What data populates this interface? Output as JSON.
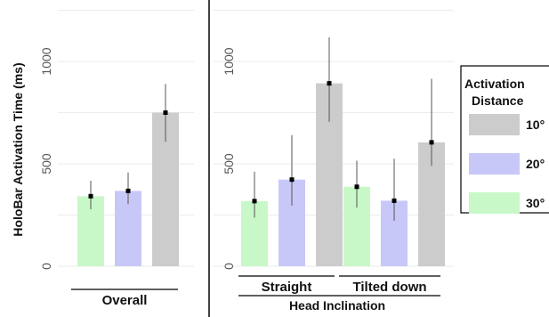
{
  "chart_data": {
    "type": "bar",
    "ylabel": "HoloBar Activation Time (ms)",
    "yticks": [
      0,
      500,
      1000
    ],
    "ylim": [
      0,
      1250
    ],
    "grid": true,
    "legend": {
      "title_lines": [
        "Activation",
        "Distance"
      ],
      "entries": [
        {
          "label": "10°",
          "color": "#cccccc"
        },
        {
          "label": "20°",
          "color": "#c8c8f8"
        },
        {
          "label": "30°",
          "color": "#c8f8c8"
        }
      ],
      "placement": "right"
    },
    "panels": [
      {
        "groups": [
          {
            "label": "Overall",
            "bars": [
              {
                "distance": "30°",
                "value": 342,
                "err_low": 278,
                "err_high": 418
              },
              {
                "distance": "20°",
                "value": 368,
                "err_low": 303,
                "err_high": 458
              },
              {
                "distance": "10°",
                "value": 750,
                "err_low": 608,
                "err_high": 890
              }
            ]
          }
        ]
      },
      {
        "xlabel": "Head Inclination",
        "groups": [
          {
            "label": "Straight",
            "bars": [
              {
                "distance": "30°",
                "value": 318,
                "err_low": 237,
                "err_high": 462
              },
              {
                "distance": "20°",
                "value": 423,
                "err_low": 296,
                "err_high": 640
              },
              {
                "distance": "10°",
                "value": 893,
                "err_low": 705,
                "err_high": 1118
              }
            ]
          },
          {
            "label": "Tilted down",
            "bars": [
              {
                "distance": "30°",
                "value": 388,
                "err_low": 286,
                "err_high": 515
              },
              {
                "distance": "20°",
                "value": 320,
                "err_low": 222,
                "err_high": 525
              },
              {
                "distance": "10°",
                "value": 605,
                "err_low": 490,
                "err_high": 915
              }
            ]
          }
        ]
      }
    ]
  }
}
